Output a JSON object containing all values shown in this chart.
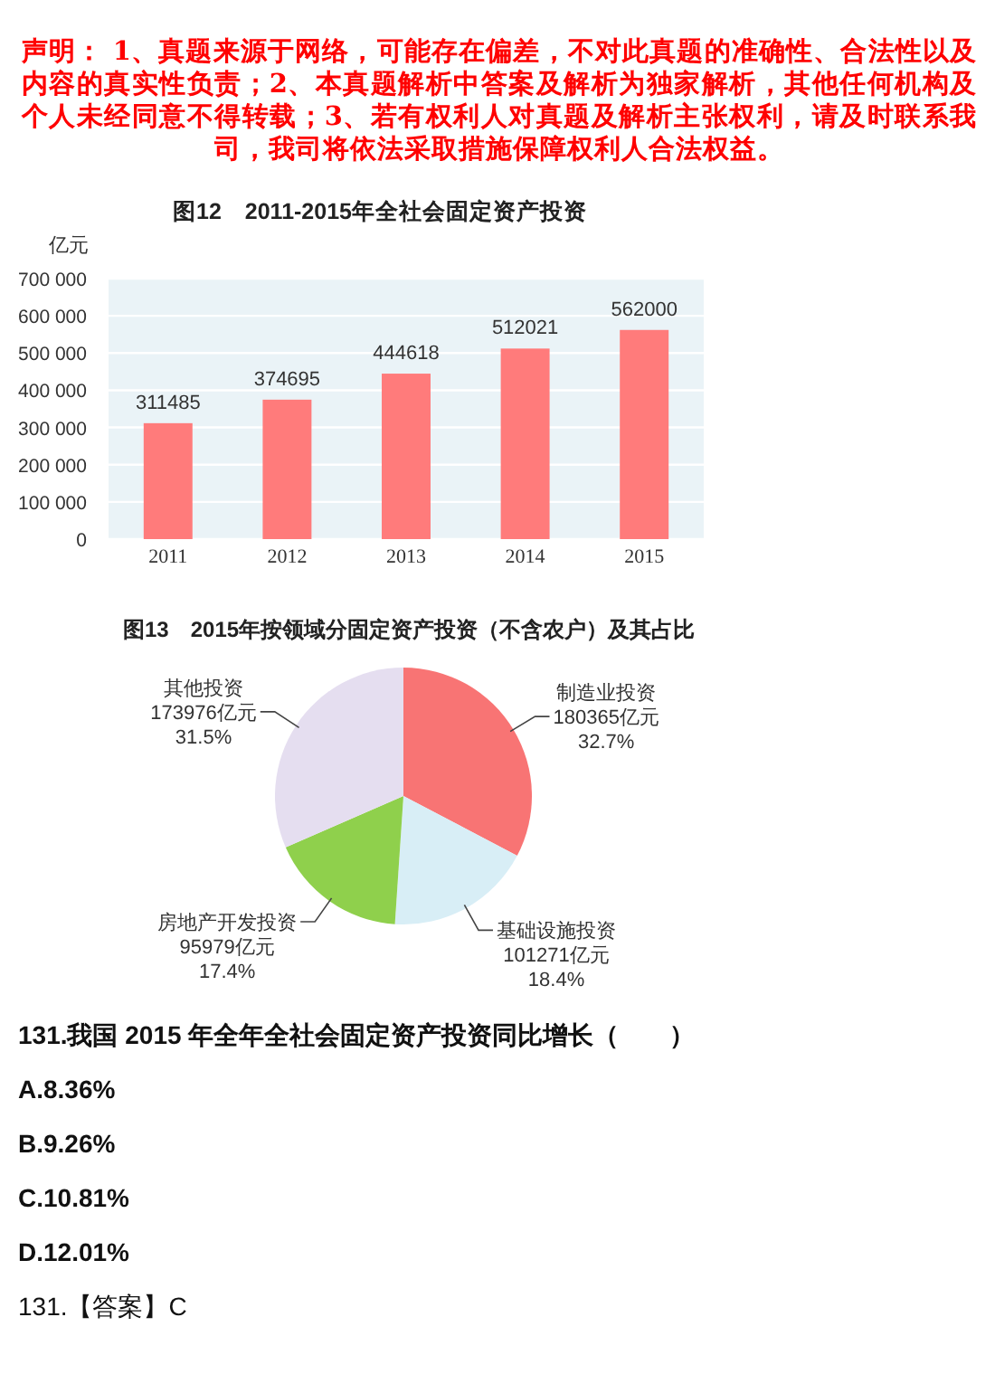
{
  "chart_data": [
    {
      "type": "other",
      "annotations": [
        "声明： 1、真题来源于网络，可能存在偏差，不对此真题的准确性、合法性以及内容的真实性负责；2、本真题解析中答案及解析为独家解析，其他任何机构及个人未经同意不得转载；3、若有权利人对真题及解析主张权利，请及时联系我司，我司将依法采取措施保障权利人合法权益。"
      ]
    },
    {
      "type": "bar",
      "title": "图12　2011-2015年全社会固定资产投资",
      "ylabel": "亿元",
      "categories": [
        "2011",
        "2012",
        "2013",
        "2014",
        "2015"
      ],
      "values": [
        311485,
        374695,
        444618,
        512021,
        562000
      ],
      "color": "#ff7b7b",
      "ylim": [
        0,
        700000
      ],
      "yticks": [
        0,
        {
          "value": 100000,
          "label": "100 000"
        },
        {
          "value": 200000,
          "label": "200 000"
        },
        {
          "value": 300000,
          "label": "300 000"
        },
        {
          "value": 400000,
          "label": "400 000"
        },
        {
          "value": 500000,
          "label": "500 000"
        },
        {
          "value": 600000,
          "label": "600 000"
        },
        {
          "value": 700000,
          "label": "700 000"
        }
      ],
      "grid": "y",
      "data_labels": true
    },
    {
      "type": "pie",
      "title": "图13　2015年按领域分固定资产投资（不含农户）及其占比",
      "categories": [
        "制造业投资",
        "基础设施投资",
        "房地产开发投资",
        "其他投资"
      ],
      "values": [
        180365,
        101271,
        95979,
        173976
      ],
      "value_labels": [
        "180365亿元\n32.7%",
        "101271亿元\n18.4%",
        "95979亿元\n17.4%",
        "173976亿元\n31.5%"
      ],
      "colors": [
        "#f87474",
        "#d8eef6",
        "#8fd04c",
        "#e5def0"
      ]
    },
    {
      "type": "other",
      "annotations": [
        "131.我国 2015 年全年全社会固定资产投资同比增长（　　）",
        "A.8.36%",
        "B.9.26%",
        "C.10.81%",
        "D.12.01%",
        "131.【答案】C"
      ]
    }
  ]
}
